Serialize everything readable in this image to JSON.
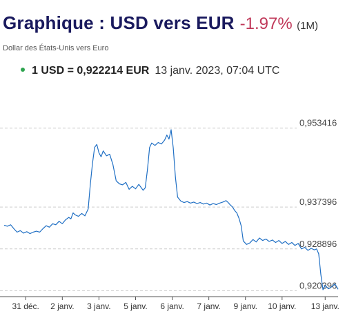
{
  "header": {
    "title": "Graphique : USD vers EUR",
    "change": "-1.97%",
    "period": "(1M)",
    "subtitle": "Dollar des États-Unis vers Euro"
  },
  "rate": {
    "value": "1 USD = 0,922214 EUR",
    "timestamp": "13 janv. 2023, 07:04 UTC",
    "dot_color": "#2ea44f"
  },
  "colors": {
    "line": "#1f6fc4",
    "title": "#1a1a5e",
    "change": "#c0395a",
    "grid": "#cccccc"
  },
  "chart_data": {
    "type": "line",
    "title": "",
    "xlabel": "",
    "ylabel": "",
    "ylim": [
      0.9192,
      0.9559
    ],
    "xlim": [
      0,
      31
    ],
    "grid": true,
    "y_ticks": [
      {
        "value": 0.953416,
        "label": "0,953416"
      },
      {
        "value": 0.937396,
        "label": "0,937396"
      },
      {
        "value": 0.928896,
        "label": "0,928896"
      },
      {
        "value": 0.920396,
        "label": "0,920396"
      }
    ],
    "x_ticks": [
      {
        "pos": 2.0,
        "label": "31 déc."
      },
      {
        "pos": 5.4,
        "label": "2 janv."
      },
      {
        "pos": 8.8,
        "label": "3 janv."
      },
      {
        "pos": 12.2,
        "label": "5 janv."
      },
      {
        "pos": 15.6,
        "label": "6 janv."
      },
      {
        "pos": 19.0,
        "label": "7 janv."
      },
      {
        "pos": 22.4,
        "label": "9 janv."
      },
      {
        "pos": 25.8,
        "label": "10 janv."
      },
      {
        "pos": 29.8,
        "label": "13 janv."
      }
    ],
    "series": [
      {
        "points": [
          [
            0.0,
            0.9337
          ],
          [
            0.3,
            0.9335
          ],
          [
            0.6,
            0.9338
          ],
          [
            0.9,
            0.933
          ],
          [
            1.2,
            0.9323
          ],
          [
            1.5,
            0.9326
          ],
          [
            1.8,
            0.9321
          ],
          [
            2.1,
            0.9324
          ],
          [
            2.4,
            0.932
          ],
          [
            2.7,
            0.9323
          ],
          [
            3.0,
            0.9325
          ],
          [
            3.3,
            0.9323
          ],
          [
            3.6,
            0.933
          ],
          [
            3.9,
            0.9336
          ],
          [
            4.2,
            0.9333
          ],
          [
            4.5,
            0.934
          ],
          [
            4.8,
            0.9338
          ],
          [
            5.1,
            0.9345
          ],
          [
            5.4,
            0.934
          ],
          [
            5.7,
            0.9348
          ],
          [
            6.0,
            0.9353
          ],
          [
            6.2,
            0.935
          ],
          [
            6.4,
            0.9362
          ],
          [
            6.6,
            0.9358
          ],
          [
            6.9,
            0.9355
          ],
          [
            7.2,
            0.9361
          ],
          [
            7.5,
            0.9356
          ],
          [
            7.8,
            0.937
          ],
          [
            8.0,
            0.942
          ],
          [
            8.2,
            0.9462
          ],
          [
            8.4,
            0.9495
          ],
          [
            8.6,
            0.9501
          ],
          [
            8.8,
            0.9484
          ],
          [
            9.0,
            0.9476
          ],
          [
            9.2,
            0.9488
          ],
          [
            9.5,
            0.9478
          ],
          [
            9.8,
            0.9481
          ],
          [
            10.1,
            0.946
          ],
          [
            10.4,
            0.9427
          ],
          [
            10.7,
            0.9421
          ],
          [
            11.0,
            0.9419
          ],
          [
            11.3,
            0.9424
          ],
          [
            11.6,
            0.941
          ],
          [
            11.9,
            0.9416
          ],
          [
            12.2,
            0.9411
          ],
          [
            12.5,
            0.942
          ],
          [
            12.7,
            0.9414
          ],
          [
            12.9,
            0.9408
          ],
          [
            13.1,
            0.9413
          ],
          [
            13.3,
            0.945
          ],
          [
            13.5,
            0.9495
          ],
          [
            13.7,
            0.9504
          ],
          [
            14.0,
            0.9499
          ],
          [
            14.3,
            0.9505
          ],
          [
            14.6,
            0.9502
          ],
          [
            14.9,
            0.951
          ],
          [
            15.1,
            0.952
          ],
          [
            15.3,
            0.9512
          ],
          [
            15.5,
            0.9531
          ],
          [
            15.7,
            0.9494
          ],
          [
            15.9,
            0.9435
          ],
          [
            16.1,
            0.9394
          ],
          [
            16.4,
            0.9386
          ],
          [
            16.7,
            0.9383
          ],
          [
            17.0,
            0.9385
          ],
          [
            17.3,
            0.9382
          ],
          [
            17.6,
            0.9384
          ],
          [
            17.9,
            0.9381
          ],
          [
            18.2,
            0.9383
          ],
          [
            18.5,
            0.938
          ],
          [
            18.8,
            0.9382
          ],
          [
            19.1,
            0.9378
          ],
          [
            19.4,
            0.9381
          ],
          [
            19.7,
            0.9379
          ],
          [
            20.0,
            0.9382
          ],
          [
            20.3,
            0.9384
          ],
          [
            20.6,
            0.9387
          ],
          [
            20.8,
            0.9383
          ],
          [
            21.0,
            0.9378
          ],
          [
            21.2,
            0.9374
          ],
          [
            21.4,
            0.9367
          ],
          [
            21.6,
            0.9362
          ],
          [
            21.8,
            0.9351
          ],
          [
            22.0,
            0.9336
          ],
          [
            22.2,
            0.9305
          ],
          [
            22.5,
            0.9298
          ],
          [
            22.8,
            0.9301
          ],
          [
            23.1,
            0.9308
          ],
          [
            23.4,
            0.9303
          ],
          [
            23.7,
            0.9311
          ],
          [
            24.0,
            0.9306
          ],
          [
            24.3,
            0.9309
          ],
          [
            24.6,
            0.9304
          ],
          [
            24.9,
            0.9307
          ],
          [
            25.2,
            0.9302
          ],
          [
            25.5,
            0.9306
          ],
          [
            25.8,
            0.93
          ],
          [
            26.1,
            0.9304
          ],
          [
            26.4,
            0.9298
          ],
          [
            26.7,
            0.9302
          ],
          [
            27.0,
            0.9296
          ],
          [
            27.3,
            0.93
          ],
          [
            27.6,
            0.9289
          ],
          [
            27.9,
            0.9292
          ],
          [
            28.2,
            0.9286
          ],
          [
            28.5,
            0.929
          ],
          [
            28.8,
            0.9287
          ],
          [
            29.0,
            0.9289
          ],
          [
            29.2,
            0.9279
          ],
          [
            29.4,
            0.9237
          ],
          [
            29.6,
            0.9206
          ],
          [
            29.8,
            0.9215
          ],
          [
            30.1,
            0.9208
          ],
          [
            30.4,
            0.9212
          ],
          [
            30.7,
            0.9218
          ],
          [
            31.0,
            0.9207
          ]
        ]
      }
    ]
  }
}
